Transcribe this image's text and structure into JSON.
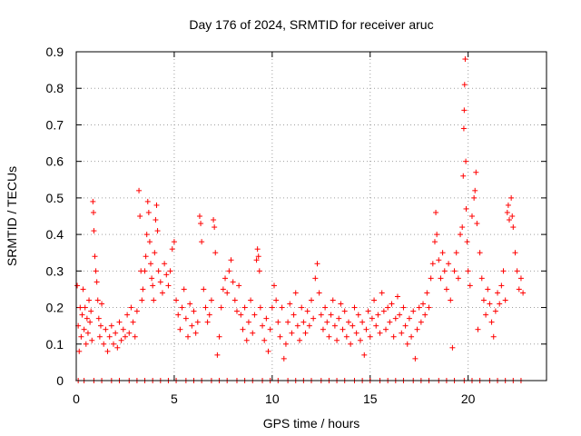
{
  "chart_data": {
    "type": "scatter",
    "title": "Day 176 of 2024, SRMTID for receiver aruc",
    "xlabel": "GPS time / hours",
    "ylabel": "SRMTID / TECUs",
    "xlim": [
      0,
      24
    ],
    "ylim": [
      0,
      0.9
    ],
    "xticks": [
      0,
      5,
      10,
      15,
      20
    ],
    "yticks": [
      0,
      0.1,
      0.2,
      0.3,
      0.4,
      0.5,
      0.6,
      0.7,
      0.8,
      0.9
    ],
    "xtick_labels": [
      "0",
      "5",
      "10",
      "15",
      "20"
    ],
    "ytick_labels": [
      "0",
      "0.1",
      "0.2",
      "0.3",
      "0.4",
      "0.5",
      "0.6",
      "0.7",
      "0.8",
      "0.9"
    ],
    "grid": true,
    "marker": "+",
    "color": "#ff0000",
    "series": [
      {
        "name": "SRMTID",
        "points": [
          [
            0.05,
            0.26
          ],
          [
            0.1,
            0.15
          ],
          [
            0.15,
            0.08
          ],
          [
            0.2,
            0.2
          ],
          [
            0.25,
            0.12
          ],
          [
            0.3,
            0.18
          ],
          [
            0.35,
            0.25
          ],
          [
            0.4,
            0.14
          ],
          [
            0.45,
            0.2
          ],
          [
            0.5,
            0.1
          ],
          [
            0.55,
            0.17
          ],
          [
            0.6,
            0.13
          ],
          [
            0.65,
            0.22
          ],
          [
            0.7,
            0.16
          ],
          [
            0.75,
            0.19
          ],
          [
            0.8,
            0.11
          ],
          [
            0.85,
            0.49
          ],
          [
            0.88,
            0.46
          ],
          [
            0.9,
            0.41
          ],
          [
            0.95,
            0.34
          ],
          [
            1.0,
            0.3
          ],
          [
            1.05,
            0.27
          ],
          [
            1.1,
            0.22
          ],
          [
            1.15,
            0.17
          ],
          [
            1.2,
            0.12
          ],
          [
            1.25,
            0.15
          ],
          [
            1.3,
            0.21
          ],
          [
            1.4,
            0.1
          ],
          [
            1.5,
            0.14
          ],
          [
            1.6,
            0.08
          ],
          [
            1.7,
            0.12
          ],
          [
            1.8,
            0.15
          ],
          [
            1.9,
            0.1
          ],
          [
            2.0,
            0.13
          ],
          [
            2.1,
            0.09
          ],
          [
            2.2,
            0.16
          ],
          [
            2.3,
            0.11
          ],
          [
            2.4,
            0.14
          ],
          [
            2.5,
            0.12
          ],
          [
            2.6,
            0.18
          ],
          [
            2.7,
            0.13
          ],
          [
            2.8,
            0.2
          ],
          [
            2.9,
            0.16
          ],
          [
            3.0,
            0.12
          ],
          [
            3.1,
            0.19
          ],
          [
            3.2,
            0.52
          ],
          [
            3.25,
            0.45
          ],
          [
            3.3,
            0.3
          ],
          [
            3.35,
            0.22
          ],
          [
            3.4,
            0.25
          ],
          [
            3.5,
            0.3
          ],
          [
            3.55,
            0.34
          ],
          [
            3.6,
            0.4
          ],
          [
            3.65,
            0.49
          ],
          [
            3.7,
            0.46
          ],
          [
            3.75,
            0.38
          ],
          [
            3.8,
            0.32
          ],
          [
            3.85,
            0.28
          ],
          [
            3.9,
            0.26
          ],
          [
            3.95,
            0.22
          ],
          [
            4.0,
            0.35
          ],
          [
            4.05,
            0.44
          ],
          [
            4.1,
            0.48
          ],
          [
            4.15,
            0.41
          ],
          [
            4.2,
            0.3
          ],
          [
            4.3,
            0.27
          ],
          [
            4.4,
            0.24
          ],
          [
            4.5,
            0.32
          ],
          [
            4.6,
            0.29
          ],
          [
            4.7,
            0.26
          ],
          [
            4.8,
            0.3
          ],
          [
            4.9,
            0.36
          ],
          [
            5.0,
            0.38
          ],
          [
            5.1,
            0.22
          ],
          [
            5.2,
            0.18
          ],
          [
            5.3,
            0.14
          ],
          [
            5.4,
            0.2
          ],
          [
            5.5,
            0.25
          ],
          [
            5.6,
            0.17
          ],
          [
            5.7,
            0.12
          ],
          [
            5.8,
            0.21
          ],
          [
            5.9,
            0.15
          ],
          [
            6.0,
            0.19
          ],
          [
            6.1,
            0.13
          ],
          [
            6.2,
            0.16
          ],
          [
            6.3,
            0.45
          ],
          [
            6.35,
            0.43
          ],
          [
            6.4,
            0.38
          ],
          [
            6.5,
            0.25
          ],
          [
            6.6,
            0.2
          ],
          [
            6.7,
            0.16
          ],
          [
            6.8,
            0.18
          ],
          [
            6.9,
            0.22
          ],
          [
            7.0,
            0.44
          ],
          [
            7.05,
            0.42
          ],
          [
            7.1,
            0.35
          ],
          [
            7.2,
            0.07
          ],
          [
            7.3,
            0.12
          ],
          [
            7.4,
            0.2
          ],
          [
            7.5,
            0.25
          ],
          [
            7.6,
            0.28
          ],
          [
            7.7,
            0.24
          ],
          [
            7.8,
            0.3
          ],
          [
            7.9,
            0.33
          ],
          [
            8.0,
            0.27
          ],
          [
            8.1,
            0.22
          ],
          [
            8.2,
            0.19
          ],
          [
            8.3,
            0.26
          ],
          [
            8.4,
            0.18
          ],
          [
            8.5,
            0.14
          ],
          [
            8.6,
            0.2
          ],
          [
            8.7,
            0.11
          ],
          [
            8.8,
            0.16
          ],
          [
            8.9,
            0.22
          ],
          [
            9.0,
            0.13
          ],
          [
            9.1,
            0.18
          ],
          [
            9.2,
            0.33
          ],
          [
            9.25,
            0.36
          ],
          [
            9.3,
            0.34
          ],
          [
            9.35,
            0.3
          ],
          [
            9.4,
            0.2
          ],
          [
            9.5,
            0.15
          ],
          [
            9.6,
            0.11
          ],
          [
            9.7,
            0.17
          ],
          [
            9.8,
            0.08
          ],
          [
            9.9,
            0.14
          ],
          [
            10.0,
            0.2
          ],
          [
            10.1,
            0.26
          ],
          [
            10.2,
            0.22
          ],
          [
            10.3,
            0.16
          ],
          [
            10.4,
            0.12
          ],
          [
            10.5,
            0.2
          ],
          [
            10.6,
            0.06
          ],
          [
            10.7,
            0.1
          ],
          [
            10.8,
            0.16
          ],
          [
            10.9,
            0.21
          ],
          [
            11.0,
            0.13
          ],
          [
            11.1,
            0.18
          ],
          [
            11.2,
            0.24
          ],
          [
            11.3,
            0.15
          ],
          [
            11.4,
            0.11
          ],
          [
            11.5,
            0.2
          ],
          [
            11.6,
            0.16
          ],
          [
            11.7,
            0.13
          ],
          [
            11.8,
            0.19
          ],
          [
            11.9,
            0.15
          ],
          [
            12.0,
            0.22
          ],
          [
            12.1,
            0.17
          ],
          [
            12.2,
            0.28
          ],
          [
            12.3,
            0.32
          ],
          [
            12.4,
            0.24
          ],
          [
            12.5,
            0.18
          ],
          [
            12.6,
            0.14
          ],
          [
            12.7,
            0.2
          ],
          [
            12.8,
            0.16
          ],
          [
            12.9,
            0.12
          ],
          [
            13.0,
            0.18
          ],
          [
            13.1,
            0.22
          ],
          [
            13.2,
            0.15
          ],
          [
            13.3,
            0.11
          ],
          [
            13.4,
            0.17
          ],
          [
            13.5,
            0.21
          ],
          [
            13.6,
            0.14
          ],
          [
            13.7,
            0.19
          ],
          [
            13.8,
            0.12
          ],
          [
            13.9,
            0.16
          ],
          [
            14.0,
            0.1
          ],
          [
            14.1,
            0.15
          ],
          [
            14.2,
            0.2
          ],
          [
            14.3,
            0.13
          ],
          [
            14.4,
            0.18
          ],
          [
            14.5,
            0.11
          ],
          [
            14.6,
            0.16
          ],
          [
            14.7,
            0.07
          ],
          [
            14.8,
            0.14
          ],
          [
            14.9,
            0.19
          ],
          [
            15.0,
            0.12
          ],
          [
            15.1,
            0.17
          ],
          [
            15.2,
            0.22
          ],
          [
            15.3,
            0.15
          ],
          [
            15.4,
            0.18
          ],
          [
            15.5,
            0.13
          ],
          [
            15.6,
            0.24
          ],
          [
            15.7,
            0.19
          ],
          [
            15.8,
            0.14
          ],
          [
            15.9,
            0.2
          ],
          [
            16.0,
            0.16
          ],
          [
            16.1,
            0.21
          ],
          [
            16.2,
            0.12
          ],
          [
            16.3,
            0.17
          ],
          [
            16.4,
            0.23
          ],
          [
            16.5,
            0.18
          ],
          [
            16.6,
            0.13
          ],
          [
            16.7,
            0.2
          ],
          [
            16.8,
            0.15
          ],
          [
            16.9,
            0.1
          ],
          [
            17.0,
            0.17
          ],
          [
            17.1,
            0.12
          ],
          [
            17.2,
            0.19
          ],
          [
            17.3,
            0.06
          ],
          [
            17.4,
            0.14
          ],
          [
            17.5,
            0.2
          ],
          [
            17.6,
            0.16
          ],
          [
            17.7,
            0.21
          ],
          [
            17.8,
            0.18
          ],
          [
            17.9,
            0.24
          ],
          [
            18.0,
            0.2
          ],
          [
            18.1,
            0.28
          ],
          [
            18.2,
            0.32
          ],
          [
            18.3,
            0.38
          ],
          [
            18.35,
            0.46
          ],
          [
            18.4,
            0.4
          ],
          [
            18.5,
            0.33
          ],
          [
            18.6,
            0.28
          ],
          [
            18.7,
            0.35
          ],
          [
            18.8,
            0.3
          ],
          [
            18.9,
            0.25
          ],
          [
            19.0,
            0.32
          ],
          [
            19.1,
            0.22
          ],
          [
            19.2,
            0.09
          ],
          [
            19.3,
            0.3
          ],
          [
            19.4,
            0.35
          ],
          [
            19.5,
            0.28
          ],
          [
            19.6,
            0.4
          ],
          [
            19.7,
            0.42
          ],
          [
            19.75,
            0.56
          ],
          [
            19.78,
            0.69
          ],
          [
            19.8,
            0.74
          ],
          [
            19.82,
            0.81
          ],
          [
            19.85,
            0.88
          ],
          [
            19.88,
            0.6
          ],
          [
            19.9,
            0.47
          ],
          [
            19.95,
            0.38
          ],
          [
            20.0,
            0.3
          ],
          [
            20.1,
            0.26
          ],
          [
            20.2,
            0.45
          ],
          [
            20.3,
            0.5
          ],
          [
            20.35,
            0.52
          ],
          [
            20.4,
            0.57
          ],
          [
            20.45,
            0.43
          ],
          [
            20.5,
            0.14
          ],
          [
            20.6,
            0.35
          ],
          [
            20.7,
            0.28
          ],
          [
            20.8,
            0.22
          ],
          [
            20.9,
            0.18
          ],
          [
            21.0,
            0.25
          ],
          [
            21.1,
            0.21
          ],
          [
            21.2,
            0.16
          ],
          [
            21.3,
            0.12
          ],
          [
            21.4,
            0.19
          ],
          [
            21.5,
            0.24
          ],
          [
            21.6,
            0.21
          ],
          [
            21.7,
            0.26
          ],
          [
            21.8,
            0.3
          ],
          [
            21.9,
            0.22
          ],
          [
            22.0,
            0.46
          ],
          [
            22.05,
            0.48
          ],
          [
            22.1,
            0.44
          ],
          [
            22.2,
            0.5
          ],
          [
            22.25,
            0.45
          ],
          [
            22.3,
            0.42
          ],
          [
            22.4,
            0.35
          ],
          [
            22.5,
            0.3
          ],
          [
            22.6,
            0.25
          ],
          [
            22.7,
            0.28
          ],
          [
            22.8,
            0.24
          ]
        ],
        "zero_x": [
          0.1,
          0.4,
          0.9,
          1.3,
          1.8,
          2.2,
          2.7,
          3.1,
          3.5,
          3.9,
          4.3,
          4.7,
          5.1,
          5.6,
          6.0,
          6.4,
          6.9,
          7.3,
          7.7,
          8.2,
          8.6,
          9.0,
          9.5,
          9.9,
          10.3,
          10.8,
          11.2,
          11.6,
          12.0,
          12.5,
          12.9,
          13.3,
          13.7,
          14.2,
          14.6,
          15.0,
          15.5,
          15.9,
          16.3,
          16.7,
          17.2,
          17.6,
          18.0,
          18.5,
          18.9,
          19.3,
          19.8,
          20.2,
          20.6,
          21.1,
          21.5,
          21.9,
          22.3,
          22.7
        ]
      }
    ]
  }
}
